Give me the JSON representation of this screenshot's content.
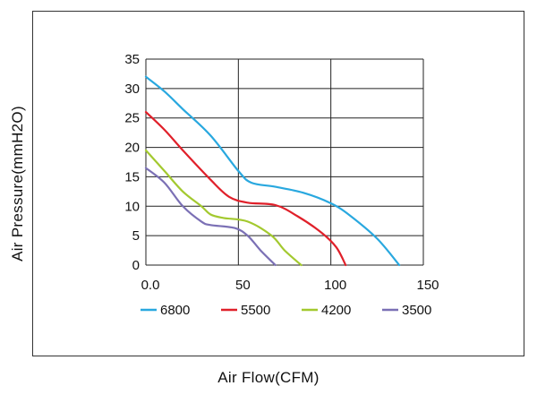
{
  "chart_data": {
    "type": "line",
    "xlabel": "Air Flow(CFM)",
    "ylabel": "Air Pressure(mmH2O)",
    "xlim": [
      0,
      150
    ],
    "ylim": [
      0,
      35
    ],
    "x_ticks": [
      "0.0",
      "50",
      "100",
      "150"
    ],
    "y_ticks": [
      "0",
      "5",
      "10",
      "15",
      "20",
      "25",
      "30",
      "35"
    ],
    "grid": true,
    "legend_position": "bottom",
    "series": [
      {
        "name": "6800",
        "color": "#29a8df",
        "points": [
          [
            0,
            32
          ],
          [
            10,
            29.5
          ],
          [
            20,
            26.5
          ],
          [
            35,
            22
          ],
          [
            50,
            16
          ],
          [
            57,
            14
          ],
          [
            70,
            13.3
          ],
          [
            85,
            12.3
          ],
          [
            100,
            10.5
          ],
          [
            110,
            8.5
          ],
          [
            125,
            4.5
          ],
          [
            137,
            0
          ]
        ]
      },
      {
        "name": "5500",
        "color": "#e0202a",
        "points": [
          [
            0,
            26
          ],
          [
            10,
            23
          ],
          [
            20,
            19.5
          ],
          [
            35,
            14.5
          ],
          [
            45,
            11.6
          ],
          [
            55,
            10.6
          ],
          [
            70,
            10.2
          ],
          [
            82,
            8.3
          ],
          [
            95,
            5.5
          ],
          [
            103,
            3
          ],
          [
            108,
            0
          ]
        ]
      },
      {
        "name": "4200",
        "color": "#a3c92f",
        "points": [
          [
            0,
            19.5
          ],
          [
            10,
            16
          ],
          [
            20,
            12.5
          ],
          [
            30,
            10
          ],
          [
            35,
            8.6
          ],
          [
            42,
            8
          ],
          [
            55,
            7.4
          ],
          [
            68,
            5
          ],
          [
            75,
            2.5
          ],
          [
            84,
            0
          ]
        ]
      },
      {
        "name": "3500",
        "color": "#7b70b5",
        "points": [
          [
            0,
            16.5
          ],
          [
            10,
            14
          ],
          [
            20,
            10
          ],
          [
            30,
            7.4
          ],
          [
            35,
            6.8
          ],
          [
            48,
            6.3
          ],
          [
            55,
            5
          ],
          [
            62,
            2.5
          ],
          [
            70,
            0
          ]
        ]
      }
    ]
  }
}
